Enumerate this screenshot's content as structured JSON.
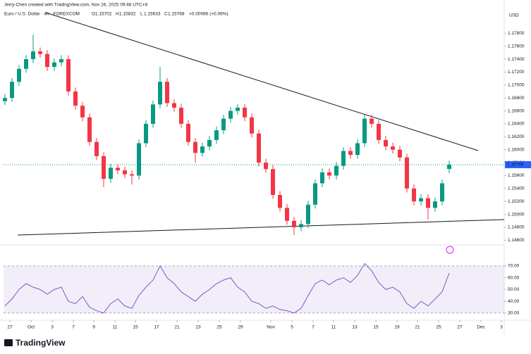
{
  "header": {
    "author": "Jerry-Chen created with TradingView.com, Nov 26, 2025 09:48 UTC+8",
    "symbol": "Euro / U.S. Dollar · 4h · FOREXCOM",
    "ohlc_labels": [
      "O",
      "H",
      "L",
      "C"
    ],
    "change": "+0.00066 (+0.06%)",
    "currency": "USD"
  },
  "footer": {
    "brand": "TradingView"
  },
  "chart_data": [
    {
      "type": "candlestick",
      "up_color": "#089981",
      "down_color": "#f23645",
      "open": [
        1.1675,
        1.168,
        1.1705,
        1.1725,
        1.174,
        1.1752,
        1.1748,
        1.1728,
        1.1735,
        1.174,
        1.169,
        1.1668,
        1.165,
        1.1612,
        1.159,
        1.1555,
        1.1572,
        1.1568,
        1.1562,
        1.156,
        1.161,
        1.164,
        1.167,
        1.1705,
        1.1672,
        1.1665,
        1.164,
        1.1612,
        1.1595,
        1.1605,
        1.1615,
        1.163,
        1.1648,
        1.166,
        1.1665,
        1.165,
        1.1625,
        1.158,
        1.157,
        1.153,
        1.151,
        1.149,
        1.148,
        1.1485,
        1.1515,
        1.1548,
        1.1565,
        1.156,
        1.1575,
        1.1598,
        1.1592,
        1.161,
        1.1648,
        1.164,
        1.1615,
        1.1605,
        1.16,
        1.1588,
        1.154,
        1.152,
        1.1525,
        1.151,
        1.152,
        1.15702
      ],
      "high": [
        1.1686,
        1.1711,
        1.1731,
        1.1746,
        1.1778,
        1.1758,
        1.1754,
        1.1741,
        1.1746,
        1.1746,
        1.1696,
        1.1674,
        1.1656,
        1.1618,
        1.1596,
        1.1578,
        1.1578,
        1.1574,
        1.1568,
        1.1616,
        1.1646,
        1.1676,
        1.1728,
        1.1711,
        1.1678,
        1.1671,
        1.1646,
        1.1618,
        1.1611,
        1.1621,
        1.1636,
        1.1654,
        1.1666,
        1.1671,
        1.1671,
        1.1656,
        1.1631,
        1.1586,
        1.1576,
        1.1536,
        1.1516,
        1.1496,
        1.1491,
        1.1521,
        1.1554,
        1.1571,
        1.1571,
        1.1581,
        1.1604,
        1.1604,
        1.1616,
        1.1654,
        1.1654,
        1.1646,
        1.1621,
        1.1611,
        1.1606,
        1.1594,
        1.1546,
        1.1531,
        1.1531,
        1.1526,
        1.1554,
        1.15832
      ],
      "low": [
        1.1669,
        1.1674,
        1.1699,
        1.1719,
        1.1734,
        1.1742,
        1.1722,
        1.1722,
        1.1729,
        1.1684,
        1.1662,
        1.1644,
        1.1606,
        1.1584,
        1.1542,
        1.1549,
        1.1562,
        1.1556,
        1.1546,
        1.1554,
        1.1604,
        1.1634,
        1.1664,
        1.1666,
        1.1659,
        1.1634,
        1.1606,
        1.158,
        1.1589,
        1.1599,
        1.1609,
        1.1624,
        1.1642,
        1.1654,
        1.1644,
        1.1619,
        1.1574,
        1.1564,
        1.1524,
        1.1504,
        1.1484,
        1.1468,
        1.1474,
        1.1479,
        1.1509,
        1.1542,
        1.1554,
        1.1554,
        1.1569,
        1.1586,
        1.1586,
        1.1604,
        1.1634,
        1.1609,
        1.1599,
        1.1594,
        1.1582,
        1.1534,
        1.1514,
        1.1514,
        1.1492,
        1.1504,
        1.1514,
        1.15633
      ],
      "close": [
        1.168,
        1.1705,
        1.1725,
        1.174,
        1.1752,
        1.1748,
        1.1728,
        1.1735,
        1.174,
        1.169,
        1.1668,
        1.165,
        1.1612,
        1.159,
        1.1555,
        1.1572,
        1.1568,
        1.1562,
        1.156,
        1.161,
        1.164,
        1.167,
        1.1705,
        1.1672,
        1.1665,
        1.164,
        1.1612,
        1.1595,
        1.1605,
        1.1615,
        1.163,
        1.1648,
        1.166,
        1.1665,
        1.165,
        1.1625,
        1.158,
        1.157,
        1.153,
        1.151,
        1.149,
        1.148,
        1.1485,
        1.1515,
        1.1548,
        1.1565,
        1.156,
        1.1575,
        1.1598,
        1.1592,
        1.161,
        1.1648,
        1.164,
        1.1615,
        1.1605,
        1.16,
        1.1588,
        1.154,
        1.152,
        1.1525,
        1.151,
        1.152,
        1.1548,
        1.15768
      ],
      "ylim": [
        1.1456,
        1.1801
      ],
      "yticks": [
        {
          "value": 1.146,
          "label": "1.14600"
        },
        {
          "value": 1.148,
          "label": "1.14800"
        },
        {
          "value": 1.15,
          "label": "1.15000"
        },
        {
          "value": 1.152,
          "label": "1.15200"
        },
        {
          "value": 1.154,
          "label": "1.15400"
        },
        {
          "value": 1.156,
          "label": "1.15600"
        },
        {
          "value": 1.158,
          "label": "1.15800"
        },
        {
          "value": 1.16,
          "label": "1.16000"
        },
        {
          "value": 1.162,
          "label": "1.16200"
        },
        {
          "value": 1.164,
          "label": "1.16400"
        },
        {
          "value": 1.166,
          "label": "1.16600"
        },
        {
          "value": 1.168,
          "label": "1.16800"
        },
        {
          "value": 1.17,
          "label": "1.17000"
        },
        {
          "value": 1.172,
          "label": "1.17200"
        },
        {
          "value": 1.174,
          "label": "1.17400"
        },
        {
          "value": 1.176,
          "label": "1.17600"
        },
        {
          "value": 1.178,
          "label": "1.17800"
        }
      ],
      "xlim": [
        -0.2,
        70.8
      ],
      "xticks": [
        {
          "value": 0.7,
          "label": "27"
        },
        {
          "value": 3.7,
          "label": "Oct"
        },
        {
          "value": 6.7,
          "label": "3"
        },
        {
          "value": 9.7,
          "label": "7"
        },
        {
          "value": 12.6,
          "label": "9"
        },
        {
          "value": 15.6,
          "label": "11"
        },
        {
          "value": 18.5,
          "label": "15"
        },
        {
          "value": 21.5,
          "label": "17"
        },
        {
          "value": 24.4,
          "label": "21"
        },
        {
          "value": 27.4,
          "label": "23"
        },
        {
          "value": 30.4,
          "label": "25"
        },
        {
          "value": 33.4,
          "label": "29"
        },
        {
          "value": 37.7,
          "label": "Nov"
        },
        {
          "value": 40.7,
          "label": "5"
        },
        {
          "value": 43.7,
          "label": "7"
        },
        {
          "value": 46.6,
          "label": "11"
        },
        {
          "value": 49.6,
          "label": "13"
        },
        {
          "value": 52.6,
          "label": "15"
        },
        {
          "value": 55.6,
          "label": "19"
        },
        {
          "value": 58.5,
          "label": "21"
        },
        {
          "value": 61.5,
          "label": "25"
        },
        {
          "value": 64.5,
          "label": "27"
        },
        {
          "value": 67.5,
          "label": "Dec"
        },
        {
          "value": 70.4,
          "label": "3"
        }
      ],
      "grid": false
    },
    {
      "type": "line",
      "color": "#7e57c2",
      "values": [
        36,
        42,
        50,
        55,
        52,
        50,
        46,
        50,
        52,
        40,
        38,
        44,
        35,
        32,
        30,
        38,
        42,
        36,
        34,
        45,
        52,
        58,
        70,
        60,
        55,
        48,
        44,
        40,
        46,
        50,
        55,
        58,
        60,
        52,
        48,
        40,
        38,
        34,
        36,
        33,
        32,
        30,
        34,
        45,
        55,
        58,
        54,
        58,
        60,
        56,
        62,
        72,
        66,
        56,
        50,
        52,
        48,
        38,
        34,
        40,
        36,
        42,
        48,
        64
      ],
      "band": [
        30,
        70
      ],
      "ylim": [
        25.7,
        86.7
      ],
      "yticks": [
        {
          "value": 30,
          "label": "30.00"
        },
        {
          "value": 40,
          "label": "40.00"
        },
        {
          "value": 50,
          "label": "50.00"
        },
        {
          "value": 60,
          "label": "60.00"
        },
        {
          "value": 70,
          "label": "70.00"
        }
      ]
    }
  ]
}
